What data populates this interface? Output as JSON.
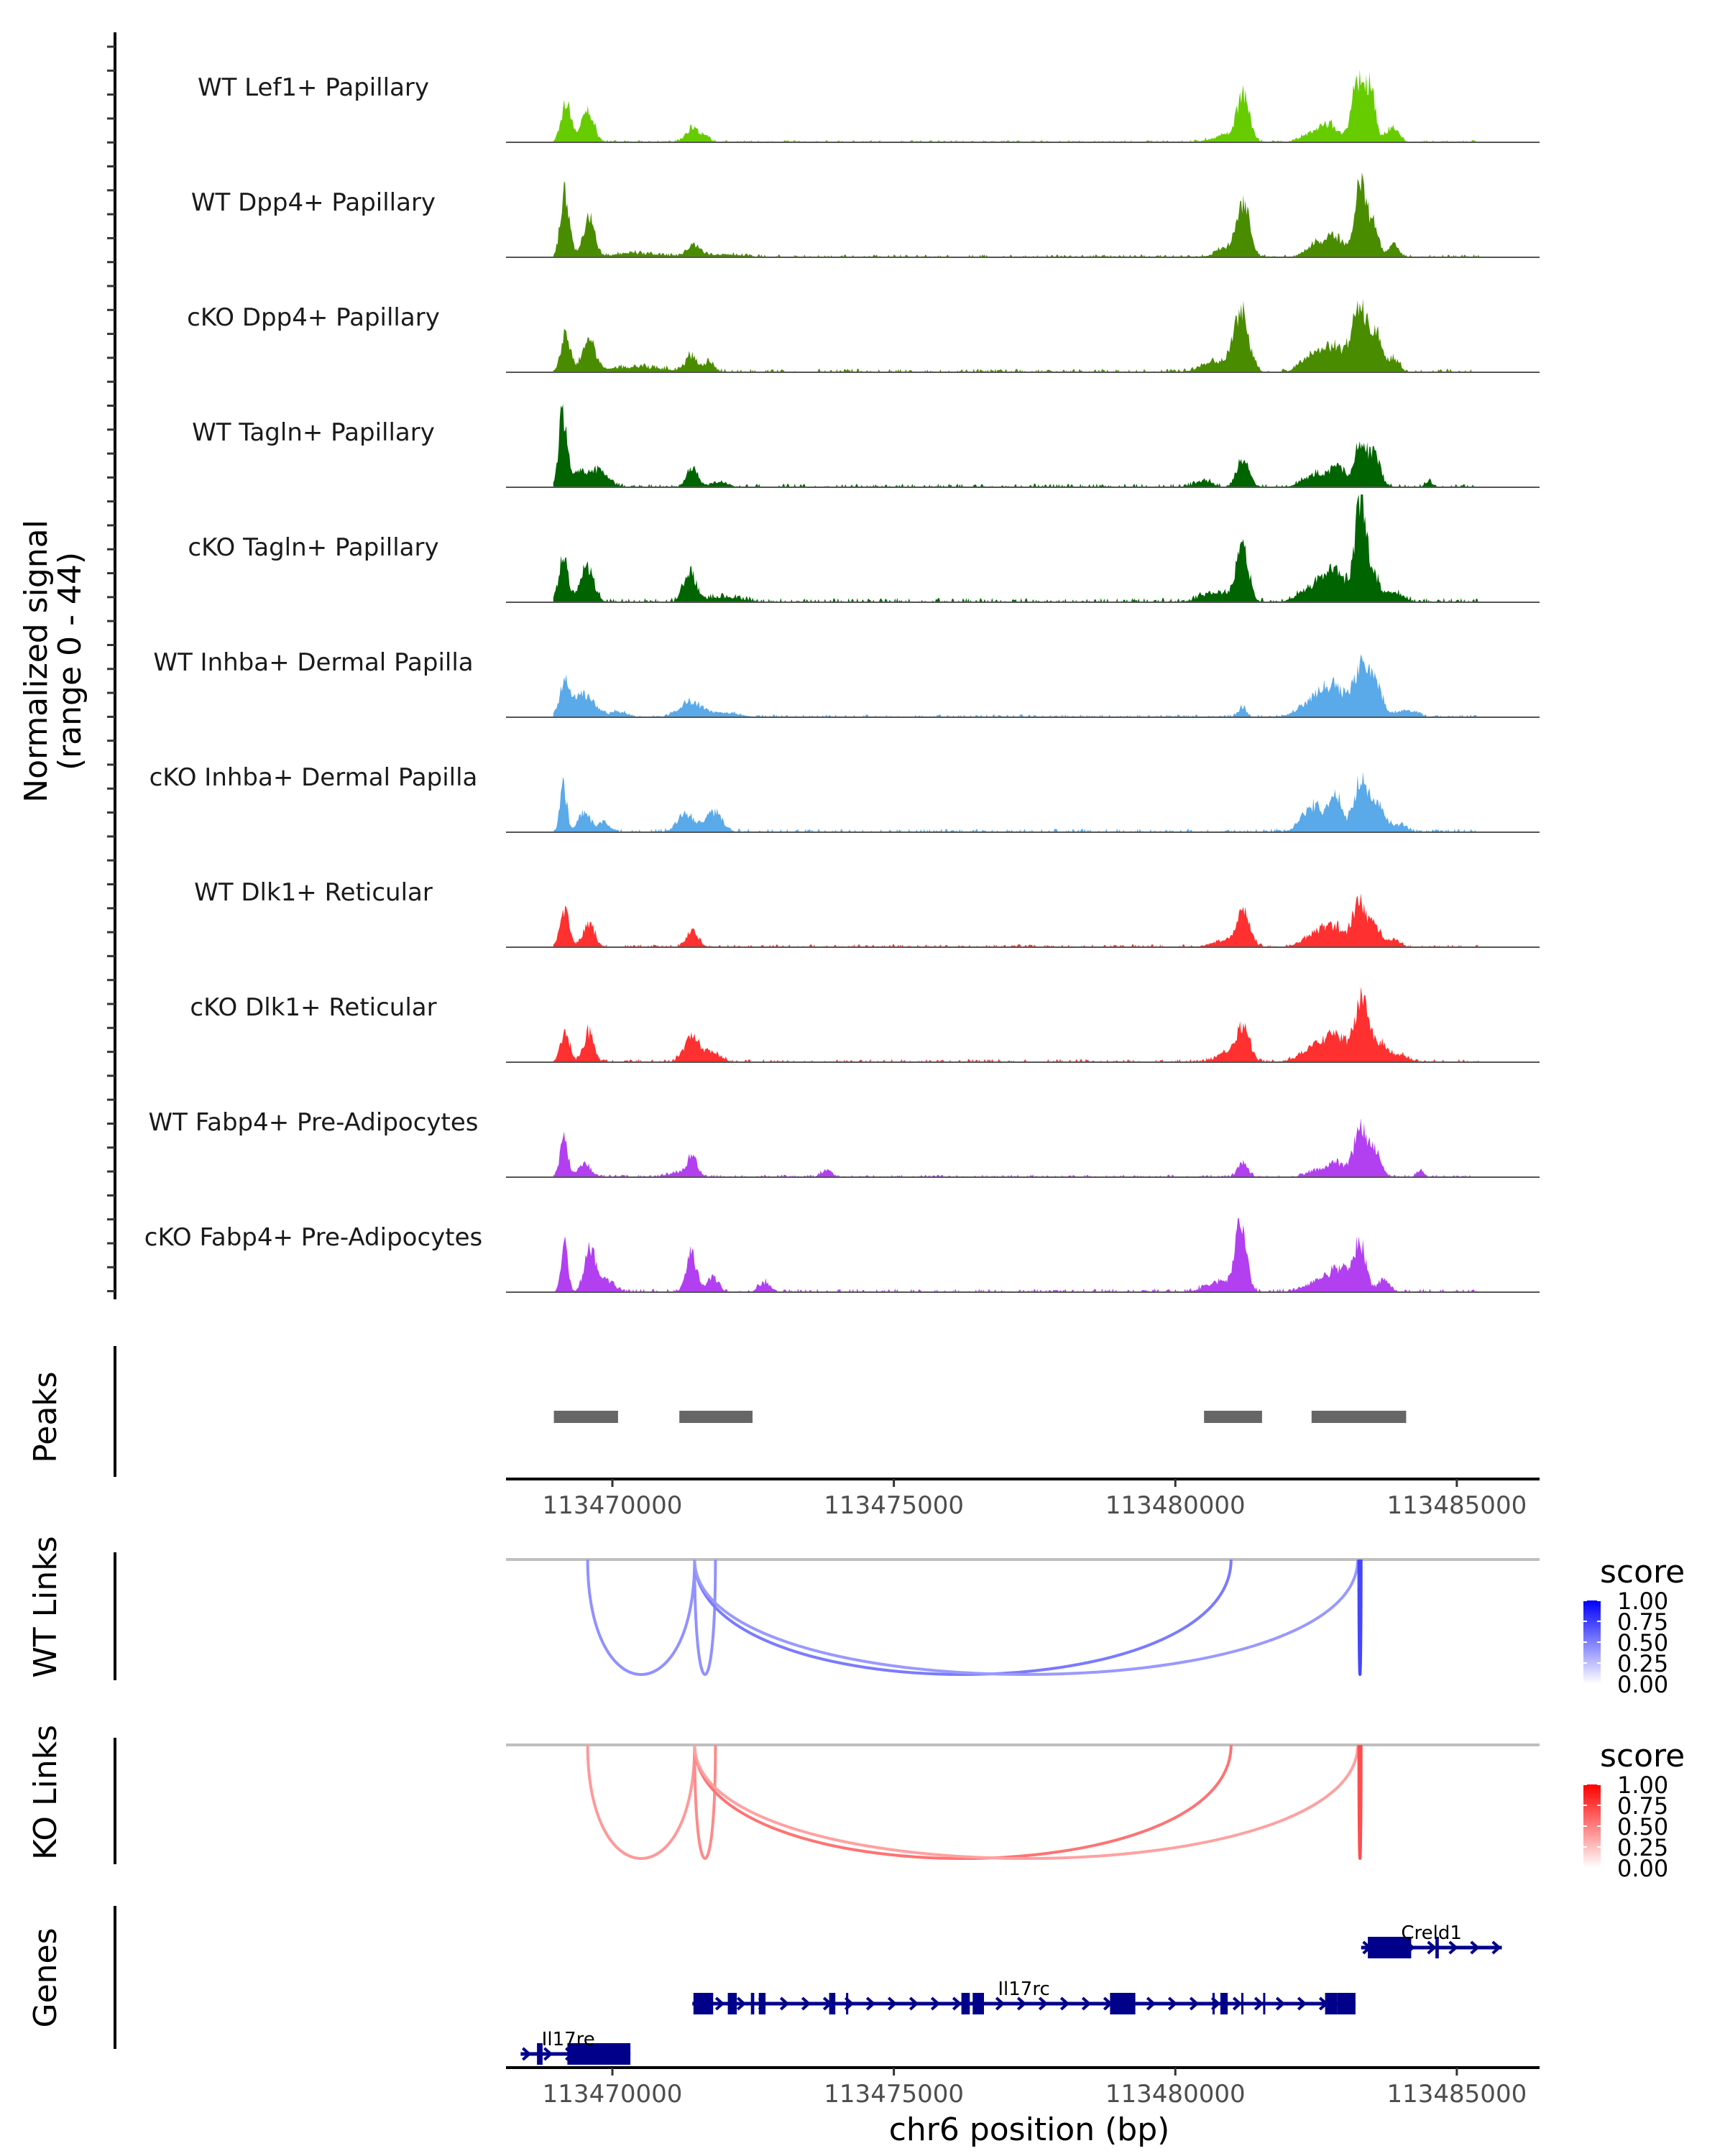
{
  "chart_data": {
    "type": "area",
    "title": "",
    "region": {
      "chrom": "chr6",
      "start": 113468110,
      "end": 113486470
    },
    "coverage": {
      "ylabel_line1": "Normalized signal",
      "ylabel_line2": "(range 0 - 44)",
      "ylim": [
        0,
        44
      ],
      "tracks": [
        {
          "name": "WT Lef1+ Papillary",
          "color": "#66cc00",
          "peaks": [
            [
              113469180,
              90,
              15
            ],
            [
              113469560,
              110,
              13
            ],
            [
              113471420,
              110,
              6
            ],
            [
              113471660,
              80,
              2
            ],
            [
              113480890,
              250,
              2.5
            ],
            [
              113481200,
              110,
              18
            ],
            [
              113482480,
              200,
              4
            ],
            [
              113482760,
              150,
              6
            ],
            [
              113483250,
              110,
              26
            ],
            [
              113483480,
              80,
              20
            ],
            [
              113483850,
              110,
              6
            ]
          ],
          "noise": 0.6
        },
        {
          "name": "WT Dpp4+ Papillary",
          "color": "#4a8c00",
          "peaks": [
            [
              113469160,
              80,
              27
            ],
            [
              113469580,
              100,
              16
            ],
            [
              113470400,
              400,
              1.5
            ],
            [
              113471440,
              120,
              5
            ],
            [
              113472000,
              300,
              1.2
            ],
            [
              113480960,
              200,
              4
            ],
            [
              113481210,
              110,
              22
            ],
            [
              113482500,
              150,
              6
            ],
            [
              113482850,
              150,
              8
            ],
            [
              113483290,
              100,
              28
            ],
            [
              113483520,
              90,
              14
            ],
            [
              113483880,
              90,
              5
            ]
          ],
          "noise": 0.8
        },
        {
          "name": "cKO Dpp4+ Papillary",
          "color": "#4a8c00",
          "peaks": [
            [
              113469170,
              80,
              16
            ],
            [
              113469580,
              110,
              13
            ],
            [
              113470400,
              500,
              2
            ],
            [
              113471400,
              110,
              6
            ],
            [
              113471720,
              90,
              4
            ],
            [
              113480720,
              250,
              4
            ],
            [
              113481170,
              130,
              24
            ],
            [
              113482460,
              200,
              7
            ],
            [
              113482850,
              180,
              10
            ],
            [
              113483260,
              120,
              28
            ],
            [
              113483560,
              120,
              15
            ],
            [
              113483900,
              90,
              5
            ]
          ],
          "noise": 1.0
        },
        {
          "name": "WT Tagln+ Papillary",
          "color": "#006400",
          "peaks": [
            [
              113469120,
              70,
              30
            ],
            [
              113469450,
              200,
              6
            ],
            [
              113469800,
              150,
              5
            ],
            [
              113471420,
              100,
              8
            ],
            [
              113471900,
              150,
              2
            ],
            [
              113480500,
              150,
              2.5
            ],
            [
              113481200,
              110,
              11
            ],
            [
              113482500,
              220,
              5
            ],
            [
              113482900,
              150,
              7
            ],
            [
              113483300,
              110,
              18
            ],
            [
              113483550,
              100,
              12
            ],
            [
              113484500,
              60,
              2.5
            ]
          ],
          "noise": 1.0
        },
        {
          "name": "cKO Tagln+ Papillary",
          "color": "#006400",
          "peaks": [
            [
              113469130,
              80,
              19
            ],
            [
              113469550,
              120,
              14
            ],
            [
              113471380,
              110,
              12
            ],
            [
              113472000,
              300,
              2
            ],
            [
              113480700,
              250,
              4
            ],
            [
              113481190,
              110,
              22
            ],
            [
              113482500,
              250,
              7
            ],
            [
              113482900,
              200,
              10
            ],
            [
              113483280,
              90,
              38
            ],
            [
              113483480,
              120,
              14
            ],
            [
              113483900,
              150,
              4
            ]
          ],
          "noise": 1.2
        },
        {
          "name": "WT Inhba+ Dermal Papilla",
          "color": "#5aa9e9",
          "peaks": [
            [
              113469150,
              100,
              12
            ],
            [
              113469500,
              180,
              9
            ],
            [
              113470100,
              150,
              2
            ],
            [
              113471360,
              180,
              6
            ],
            [
              113471900,
              300,
              2
            ],
            [
              113481190,
              70,
              4
            ],
            [
              113482500,
              260,
              7
            ],
            [
              113482850,
              220,
              10
            ],
            [
              113483300,
              120,
              20
            ],
            [
              113483560,
              120,
              13
            ],
            [
              113484100,
              180,
              3
            ]
          ],
          "noise": 0.8
        },
        {
          "name": "cKO Inhba+ Dermal Papilla",
          "color": "#5aa9e9",
          "peaks": [
            [
              113469130,
              60,
              20
            ],
            [
              113469500,
              100,
              8
            ],
            [
              113469850,
              100,
              4
            ],
            [
              113471300,
              150,
              7
            ],
            [
              113471800,
              150,
              8
            ],
            [
              113482450,
              200,
              10
            ],
            [
              113482850,
              120,
              13
            ],
            [
              113483270,
              110,
              19
            ],
            [
              113483550,
              150,
              12
            ],
            [
              113484000,
              120,
              3
            ]
          ],
          "noise": 1.0
        },
        {
          "name": "WT Dlk1+ Reticular",
          "color": "#ff3030",
          "peaks": [
            [
              113469150,
              80,
              15
            ],
            [
              113469580,
              100,
              10
            ],
            [
              113471430,
              100,
              7
            ],
            [
              113480960,
              250,
              3
            ],
            [
              113481210,
              110,
              12
            ],
            [
              113482500,
              220,
              5
            ],
            [
              113482850,
              200,
              7
            ],
            [
              113483270,
              110,
              19
            ],
            [
              113483560,
              110,
              9
            ],
            [
              113483900,
              100,
              3
            ]
          ],
          "noise": 0.8
        },
        {
          "name": "cKO Dlk1+ Reticular",
          "color": "#ff3030",
          "peaks": [
            [
              113469160,
              80,
              12
            ],
            [
              113469580,
              90,
              12
            ],
            [
              113471400,
              130,
              10
            ],
            [
              113471750,
              150,
              4
            ],
            [
              113480960,
              200,
              4
            ],
            [
              113481210,
              110,
              13
            ],
            [
              113482500,
              250,
              6
            ],
            [
              113482900,
              200,
              9
            ],
            [
              113483300,
              110,
              23
            ],
            [
              113483600,
              150,
              8
            ],
            [
              113484000,
              150,
              2.5
            ]
          ],
          "noise": 0.9
        },
        {
          "name": "WT Fabp4+ Pre-Adipocytes",
          "color": "#b23ff0",
          "peaks": [
            [
              113469140,
              70,
              15
            ],
            [
              113469500,
              120,
              5
            ],
            [
              113471420,
              90,
              7
            ],
            [
              113471200,
              200,
              2
            ],
            [
              113473800,
              90,
              3
            ],
            [
              113481200,
              90,
              6
            ],
            [
              113482550,
              200,
              3
            ],
            [
              113482900,
              150,
              5
            ],
            [
              113483290,
              110,
              21
            ],
            [
              113483560,
              100,
              10
            ],
            [
              113484350,
              60,
              3
            ]
          ],
          "noise": 0.7
        },
        {
          "name": "cKO Fabp4+ Pre-Adipocytes",
          "color": "#b23ff0",
          "peaks": [
            [
              113469150,
              60,
              18
            ],
            [
              113469600,
              100,
              17
            ],
            [
              113469900,
              120,
              5
            ],
            [
              113471400,
              90,
              17
            ],
            [
              113471780,
              100,
              6
            ],
            [
              113472700,
              100,
              4
            ],
            [
              113480800,
              250,
              4
            ],
            [
              113481160,
              100,
              27
            ],
            [
              113482600,
              250,
              5
            ],
            [
              113482960,
              180,
              8
            ],
            [
              113483280,
              100,
              19
            ],
            [
              113483700,
              100,
              5
            ]
          ],
          "noise": 1.0
        }
      ]
    },
    "peaks_track": {
      "label": "Peaks",
      "color": "#666666",
      "ranges": [
        [
          113468960,
          113470100
        ],
        [
          113471190,
          113472490
        ],
        [
          113480510,
          113481540
        ],
        [
          113482420,
          113484100
        ]
      ]
    },
    "x_axis": {
      "ticks": [
        113470000,
        113475000,
        113480000,
        113485000
      ],
      "tick_labels": [
        "113470000",
        "113475000",
        "113480000",
        "113485000"
      ],
      "xlabel": "chr6 position (bp)"
    },
    "links": [
      {
        "label": "WT Links",
        "palette": "blue",
        "arcs": [
          {
            "start": 113469560,
            "end": 113471460,
            "score": 0.3
          },
          {
            "start": 113471460,
            "end": 113471830,
            "score": 0.3
          },
          {
            "start": 113471460,
            "end": 113480990,
            "score": 0.45
          },
          {
            "start": 113471460,
            "end": 113483240,
            "score": 0.25
          },
          {
            "start": 113483260,
            "end": 113483300,
            "score": 0.8
          }
        ]
      },
      {
        "label": "KO Links",
        "palette": "red",
        "arcs": [
          {
            "start": 113469560,
            "end": 113471460,
            "score": 0.25
          },
          {
            "start": 113471460,
            "end": 113471830,
            "score": 0.35
          },
          {
            "start": 113471460,
            "end": 113480990,
            "score": 0.5
          },
          {
            "start": 113471460,
            "end": 113483240,
            "score": 0.2
          },
          {
            "start": 113483260,
            "end": 113483300,
            "score": 0.75
          }
        ]
      }
    ],
    "legends": [
      {
        "title": "score",
        "ticks": [
          "1.00",
          "0.75",
          "0.50",
          "0.25",
          "0.00"
        ],
        "low": "#ffffff",
        "high": "#0000ff"
      },
      {
        "title": "score",
        "ticks": [
          "1.00",
          "0.75",
          "0.50",
          "0.25",
          "0.00"
        ],
        "low": "#ffffff",
        "high": "#ff0000"
      }
    ],
    "genes": {
      "label": "Genes",
      "color": "#00008b",
      "items": [
        {
          "name": "Creld1",
          "strand": "+",
          "row": 0,
          "start": 113483300,
          "end": 113485800,
          "exons": [
            [
              113483420,
              113484190
            ],
            [
              113484620,
              113484680
            ]
          ]
        },
        {
          "name": "Il17rc",
          "strand": "+",
          "row": 1,
          "start": 113471420,
          "end": 113483200,
          "exons": [
            [
              113471440,
              113471790
            ],
            [
              113472050,
              113472210
            ],
            [
              113472460,
              113472520
            ],
            [
              113472600,
              113472720
            ],
            [
              113473850,
              113473960
            ],
            [
              113474150,
              113474190
            ],
            [
              113476200,
              113476350
            ],
            [
              113476400,
              113476600
            ],
            [
              113478840,
              113479290
            ],
            [
              113480660,
              113480700
            ],
            [
              113480800,
              113480930
            ],
            [
              113481170,
              113481210
            ],
            [
              113481560,
              113481590
            ],
            [
              113482660,
              113482880
            ],
            [
              113482880,
              113483200
            ]
          ]
        },
        {
          "name": "Il17re",
          "strand": "+",
          "row": 2,
          "start": 113468370,
          "end": 113470320,
          "exons": [
            [
              113468660,
              113468760
            ],
            [
              113469200,
              113470320
            ]
          ]
        }
      ]
    }
  }
}
